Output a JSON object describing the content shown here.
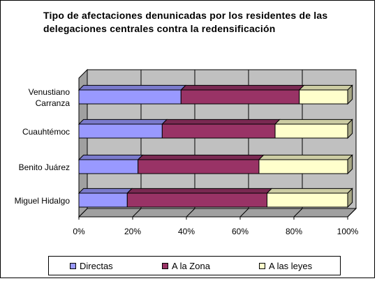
{
  "chart_data": {
    "type": "bar",
    "orientation": "horizontal",
    "stacked": "percent",
    "title": "Tipo de afectaciones denunicadas por los residentes de las delegaciones centrales contra la redensificación",
    "categories": [
      [
        "Venustiano",
        "Carranza"
      ],
      [
        "Cuauhtémoc"
      ],
      [
        "Benito Juárez"
      ],
      [
        "Miguel Hidalgo"
      ]
    ],
    "series": [
      {
        "name": "Directas",
        "values": [
          38,
          31,
          22,
          18
        ],
        "color": "#9999ff"
      },
      {
        "name": "A la Zona",
        "values": [
          44,
          42,
          45,
          52
        ],
        "color": "#993366"
      },
      {
        "name": "A las leyes",
        "values": [
          18,
          27,
          33,
          30
        ],
        "color": "#ffffcc"
      }
    ],
    "xlim": [
      0,
      100
    ],
    "x_ticks": [
      "0%",
      "20%",
      "40%",
      "60%",
      "80%",
      "100%"
    ],
    "grid": "vertical",
    "legend_position": "bottom"
  }
}
